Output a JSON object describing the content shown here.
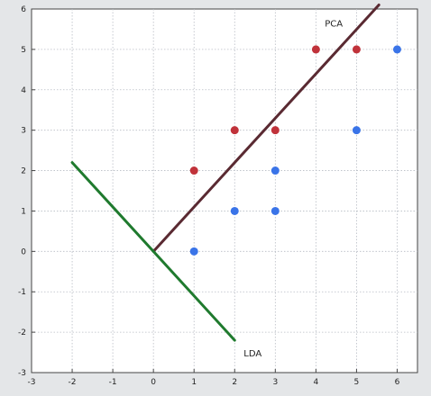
{
  "chart_data": {
    "type": "scatter",
    "title": "",
    "xlabel": "",
    "ylabel": "",
    "xlim": [
      -3,
      6.5
    ],
    "ylim": [
      -3,
      6
    ],
    "x_ticks": [
      -3,
      -2,
      -1,
      0,
      1,
      2,
      3,
      4,
      5,
      6
    ],
    "y_ticks": [
      -3,
      -2,
      -1,
      0,
      1,
      2,
      3,
      4,
      5,
      6
    ],
    "grid": true,
    "series": [
      {
        "color": "#c0323a",
        "points": [
          [
            1,
            2
          ],
          [
            2,
            3
          ],
          [
            3,
            3
          ],
          [
            4,
            5
          ],
          [
            5,
            5
          ]
        ]
      },
      {
        "color": "#3a74e8",
        "points": [
          [
            1,
            0
          ],
          [
            2,
            1
          ],
          [
            3,
            1
          ],
          [
            3,
            2
          ],
          [
            5,
            3
          ],
          [
            6,
            5
          ]
        ]
      }
    ],
    "lines": [
      {
        "label": "PCA",
        "color": "#5a2a32",
        "from": [
          0,
          0
        ],
        "to": [
          5.55,
          6.1
        ]
      },
      {
        "label": "LDA",
        "color": "#1f7a2e",
        "from": [
          -2,
          2.2
        ],
        "to": [
          2,
          -2.2
        ]
      }
    ]
  },
  "colors": {
    "plot_background": "#ffffff",
    "page_background": "#e4e6e8",
    "grid": "#b8bcc4"
  }
}
